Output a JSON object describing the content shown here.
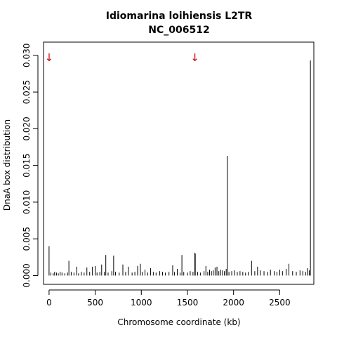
{
  "chart_data": {
    "type": "bar",
    "title": "Idiomarina loihiensis L2TR",
    "subtitle": "NC_006512",
    "xlabel": "Chromosome coordinate (kb)",
    "ylabel": "DnaA box distribution",
    "xlim": [
      -60,
      2870
    ],
    "ylim": [
      -0.0012,
      0.0318
    ],
    "xticks": [
      0,
      500,
      1000,
      1500,
      2000,
      2500
    ],
    "yticks": [
      "0.000",
      "0.005",
      "0.010",
      "0.015",
      "0.020",
      "0.025",
      "0.030"
    ],
    "yticks_values": [
      0,
      0.005,
      0.01,
      0.015,
      0.02,
      0.025,
      0.03
    ],
    "grid": false,
    "line_color": "#000000",
    "arrow_color": "#cc0000",
    "markers": [
      {
        "x": 0,
        "symbol": "↓"
      },
      {
        "x": 1580,
        "symbol": "↓"
      }
    ],
    "series": [
      {
        "x": [
          0,
          20,
          45,
          60,
          80,
          100,
          120,
          140,
          170,
          200,
          215,
          240,
          270,
          300,
          320,
          350,
          380,
          410,
          440,
          470,
          500,
          520,
          550,
          570,
          600,
          615,
          640,
          680,
          700,
          720,
          760,
          800,
          830,
          860,
          900,
          930,
          960,
          990,
          1010,
          1040,
          1070,
          1100,
          1130,
          1160,
          1200,
          1230,
          1260,
          1300,
          1340,
          1360,
          1390,
          1420,
          1440,
          1460,
          1500,
          1530,
          1560,
          1580,
          1585,
          1610,
          1640,
          1680,
          1700,
          1720,
          1740,
          1760,
          1780,
          1800,
          1820,
          1840,
          1860,
          1880,
          1900,
          1920,
          1933,
          1950,
          1980,
          2010,
          2040,
          2070,
          2100,
          2130,
          2160,
          2195,
          2230,
          2260,
          2290,
          2330,
          2370,
          2400,
          2440,
          2470,
          2500,
          2530,
          2570,
          2600,
          2640,
          2680,
          2720,
          2750,
          2780,
          2800,
          2820,
          2833
        ],
        "values": [
          0.004,
          0.0004,
          0.0003,
          0.0005,
          0.0004,
          0.0003,
          0.0005,
          0.0004,
          0.0003,
          0.0004,
          0.002,
          0.0005,
          0.0004,
          0.0012,
          0.0003,
          0.0005,
          0.0004,
          0.0011,
          0.0005,
          0.0012,
          0.0013,
          0.0004,
          0.0005,
          0.0015,
          0.0005,
          0.0028,
          0.0004,
          0.0006,
          0.0027,
          0.0005,
          0.0004,
          0.0015,
          0.0005,
          0.0012,
          0.0004,
          0.0005,
          0.0013,
          0.0016,
          0.0005,
          0.0008,
          0.0004,
          0.001,
          0.0005,
          0.0004,
          0.0006,
          0.0005,
          0.0004,
          0.0005,
          0.0014,
          0.0005,
          0.0009,
          0.0004,
          0.0028,
          0.0005,
          0.0004,
          0.0006,
          0.0005,
          0.0031,
          0.003,
          0.0005,
          0.0004,
          0.0006,
          0.0013,
          0.0005,
          0.0008,
          0.0006,
          0.0007,
          0.0011,
          0.0012,
          0.0006,
          0.0008,
          0.0007,
          0.0006,
          0.0009,
          0.0163,
          0.0005,
          0.0006,
          0.0007,
          0.0005,
          0.0006,
          0.0005,
          0.0004,
          0.0005,
          0.002,
          0.0006,
          0.0012,
          0.0007,
          0.0006,
          0.0005,
          0.0008,
          0.0006,
          0.0005,
          0.0008,
          0.0006,
          0.0009,
          0.0016,
          0.0006,
          0.0005,
          0.0007,
          0.0006,
          0.0005,
          0.001,
          0.0007,
          0.0293
        ]
      }
    ]
  }
}
